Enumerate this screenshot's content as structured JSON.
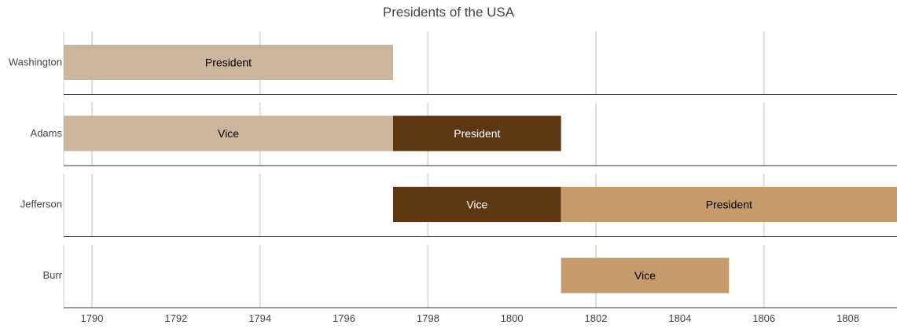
{
  "chart_data": {
    "type": "timeline",
    "title": "Presidents of the USA",
    "rows": [
      "Washington",
      "Adams",
      "Jefferson",
      "Burr"
    ],
    "x_ticks": [
      "1790",
      "1792",
      "1794",
      "1796",
      "1798",
      "1800",
      "1802",
      "1804",
      "1806",
      "1808"
    ],
    "xlim": [
      "1789-04-30",
      "1809-03-04"
    ],
    "grid": true,
    "bars": [
      {
        "row": "Washington",
        "label": "President",
        "start": "1789-04-30",
        "end": "1797-03-04",
        "color": "#cdb49d",
        "text_color": "#000000"
      },
      {
        "row": "Adams",
        "label": "Vice",
        "start": "1789-04-30",
        "end": "1797-03-04",
        "color": "#cdb49d",
        "text_color": "#000000"
      },
      {
        "row": "Adams",
        "label": "President",
        "start": "1797-03-04",
        "end": "1801-03-04",
        "color": "#5e3813",
        "text_color": "#ffffff"
      },
      {
        "row": "Jefferson",
        "label": "Vice",
        "start": "1797-03-04",
        "end": "1801-03-04",
        "color": "#5e3813",
        "text_color": "#ffffff"
      },
      {
        "row": "Jefferson",
        "label": "President",
        "start": "1801-03-04",
        "end": "1809-03-04",
        "color": "#c59a6d",
        "text_color": "#000000"
      },
      {
        "row": "Burr",
        "label": "Vice",
        "start": "1801-03-04",
        "end": "1805-03-04",
        "color": "#c59a6d",
        "text_color": "#000000"
      }
    ]
  }
}
